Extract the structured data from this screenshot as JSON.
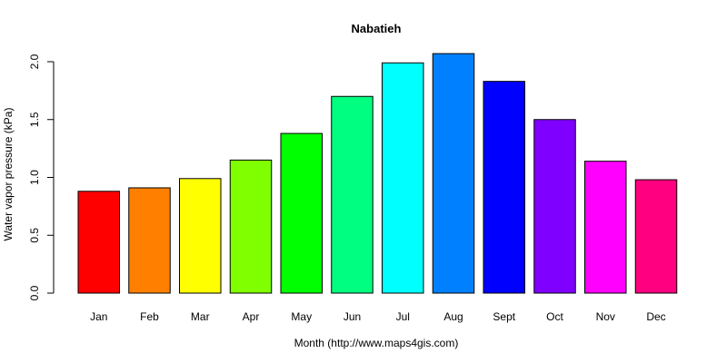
{
  "chart_data": {
    "type": "bar",
    "title": "Nabatieh",
    "xlabel": "Month (http://www.maps4gis.com)",
    "ylabel": "Water vapor pressure (kPa)",
    "categories": [
      "Jan",
      "Feb",
      "Mar",
      "Apr",
      "May",
      "Jun",
      "Jul",
      "Aug",
      "Sept",
      "Oct",
      "Nov",
      "Dec"
    ],
    "values": [
      0.88,
      0.91,
      0.99,
      1.15,
      1.38,
      1.7,
      1.99,
      2.07,
      1.83,
      1.5,
      1.14,
      0.98
    ],
    "colors": [
      "#FF0000",
      "#FF8000",
      "#FFFF00",
      "#80FF00",
      "#00FF00",
      "#00FF80",
      "#00FFFF",
      "#0080FF",
      "#0000FF",
      "#8000FF",
      "#FF00FF",
      "#FF0080"
    ],
    "yticks": [
      0.0,
      0.5,
      1.0,
      1.5,
      2.0
    ],
    "ytick_labels": [
      "0.0",
      "0.5",
      "1.0",
      "1.5",
      "2.0"
    ],
    "ylim": [
      0,
      2.0
    ],
    "grid": false,
    "legend": null
  }
}
